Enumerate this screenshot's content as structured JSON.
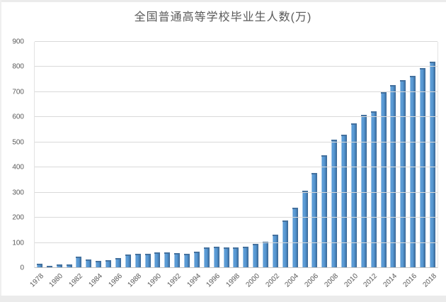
{
  "page": {
    "background": "#ffffff",
    "frame_color": "#ebebeb"
  },
  "chart_data": {
    "type": "bar",
    "title": "全国普通高等学校毕业生人数(万)",
    "xlabel": "",
    "ylabel": "",
    "ylim": [
      0,
      900
    ],
    "yticks": [
      0,
      100,
      200,
      300,
      400,
      500,
      600,
      700,
      800,
      900
    ],
    "grid": "horizontal",
    "legend": "none",
    "categories": [
      "1978",
      "1979",
      "1980",
      "1981",
      "1982",
      "1983",
      "1984",
      "1985",
      "1986",
      "1987",
      "1988",
      "1989",
      "1990",
      "1991",
      "1992",
      "1993",
      "1994",
      "1995",
      "1996",
      "1997",
      "1998",
      "1999",
      "2000",
      "2001",
      "2002",
      "2003",
      "2004",
      "2005",
      "2006",
      "2007",
      "2008",
      "2009",
      "2010",
      "2011",
      "2012",
      "2013",
      "2014",
      "2015",
      "2016",
      "2017",
      "2018"
    ],
    "values": [
      16.5,
      8.5,
      14.7,
      14.0,
      45.7,
      33.5,
      28.7,
      31.6,
      39.3,
      53.2,
      55.4,
      57.6,
      61.4,
      61.4,
      60.4,
      57.1,
      63.7,
      80.5,
      83.9,
      82.9,
      83.0,
      84.8,
      95.0,
      103.6,
      133.7,
      187.7,
      239.1,
      306.8,
      377.5,
      447.8,
      512.0,
      531.1,
      575.4,
      608.2,
      624.7,
      699.0,
      727.0,
      749.0,
      765.0,
      795.0,
      820.0
    ],
    "xtick_labels": [
      "1978",
      "1980",
      "1982",
      "1984",
      "1986",
      "1988",
      "1990",
      "1992",
      "1994",
      "1996",
      "1998",
      "2000",
      "2002",
      "2004",
      "2006",
      "2008",
      "2010",
      "2012",
      "2014",
      "2016",
      "2018"
    ],
    "xtick_every": 2,
    "colors": {
      "bar_fill": "#5b9bd5",
      "bar_highlight": "#9cc3e5",
      "bar_shade": "#3d6b99",
      "bar_cap": "#44719e",
      "gridline": "#d9d9d9",
      "axis_text": "#595959",
      "title_text": "#595959"
    }
  }
}
